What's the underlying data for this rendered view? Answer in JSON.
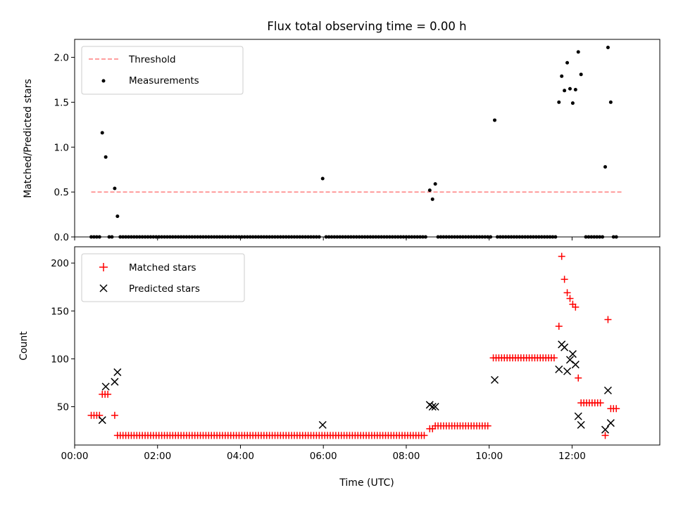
{
  "chart_data": [
    {
      "type": "scatter",
      "title": "Flux total observing time = 0.00 h",
      "ylabel": "Matched/Predicted stars",
      "xlabel": "",
      "xlim": [
        "00:00",
        "14:07"
      ],
      "ylim": [
        0,
        2.2
      ],
      "xticks": [
        "00:00",
        "02:00",
        "04:00",
        "06:00",
        "08:00",
        "10:00",
        "12:00"
      ],
      "yticks": [
        "0.0",
        "0.5",
        "1.0",
        "1.5",
        "2.0"
      ],
      "legend_position": "top-left",
      "legend": [
        {
          "label": "Threshold",
          "style": "dashed-line",
          "color": "#ff7f7f"
        },
        {
          "label": "Measurements",
          "style": "dot",
          "color": "#000000"
        }
      ],
      "threshold": {
        "value": 0.5,
        "x_start": "00:24",
        "x_end": "13:12"
      },
      "series": [
        {
          "name": "Measurements",
          "color": "#000000",
          "points": [
            [
              "00:24",
              0
            ],
            [
              "00:28",
              0
            ],
            [
              "00:32",
              0
            ],
            [
              "00:36",
              0
            ],
            [
              "00:40",
              1.16
            ],
            [
              "00:45",
              0.89
            ],
            [
              "00:50",
              0
            ],
            [
              "00:54",
              0
            ],
            [
              "00:58",
              0.54
            ],
            [
              "01:02",
              0.23
            ],
            [
              "01:06",
              0
            ],
            [
              "01:10",
              0
            ],
            [
              "01:14",
              0
            ],
            [
              "01:18",
              0
            ],
            [
              "01:22",
              0
            ],
            [
              "01:26",
              0
            ],
            [
              "01:30",
              0
            ],
            [
              "01:34",
              0
            ],
            [
              "01:38",
              0
            ],
            [
              "01:42",
              0
            ],
            [
              "01:46",
              0
            ],
            [
              "01:50",
              0
            ],
            [
              "01:54",
              0
            ],
            [
              "01:58",
              0
            ],
            [
              "02:02",
              0
            ],
            [
              "02:06",
              0
            ],
            [
              "02:10",
              0
            ],
            [
              "02:14",
              0
            ],
            [
              "02:18",
              0
            ],
            [
              "02:22",
              0
            ],
            [
              "02:26",
              0
            ],
            [
              "02:30",
              0
            ],
            [
              "02:34",
              0
            ],
            [
              "02:38",
              0
            ],
            [
              "02:42",
              0
            ],
            [
              "02:46",
              0
            ],
            [
              "02:50",
              0
            ],
            [
              "02:54",
              0
            ],
            [
              "02:58",
              0
            ],
            [
              "03:02",
              0
            ],
            [
              "03:06",
              0
            ],
            [
              "03:10",
              0
            ],
            [
              "03:14",
              0
            ],
            [
              "03:18",
              0
            ],
            [
              "03:22",
              0
            ],
            [
              "03:26",
              0
            ],
            [
              "03:30",
              0
            ],
            [
              "03:34",
              0
            ],
            [
              "03:38",
              0
            ],
            [
              "03:42",
              0
            ],
            [
              "03:46",
              0
            ],
            [
              "03:50",
              0
            ],
            [
              "03:54",
              0
            ],
            [
              "03:58",
              0
            ],
            [
              "04:02",
              0
            ],
            [
              "04:06",
              0
            ],
            [
              "04:10",
              0
            ],
            [
              "04:14",
              0
            ],
            [
              "04:18",
              0
            ],
            [
              "04:22",
              0
            ],
            [
              "04:26",
              0
            ],
            [
              "04:30",
              0
            ],
            [
              "04:34",
              0
            ],
            [
              "04:38",
              0
            ],
            [
              "04:42",
              0
            ],
            [
              "04:46",
              0
            ],
            [
              "04:50",
              0
            ],
            [
              "04:54",
              0
            ],
            [
              "04:58",
              0
            ],
            [
              "05:02",
              0
            ],
            [
              "05:06",
              0
            ],
            [
              "05:10",
              0
            ],
            [
              "05:14",
              0
            ],
            [
              "05:18",
              0
            ],
            [
              "05:22",
              0
            ],
            [
              "05:26",
              0
            ],
            [
              "05:30",
              0
            ],
            [
              "05:34",
              0
            ],
            [
              "05:38",
              0
            ],
            [
              "05:42",
              0
            ],
            [
              "05:46",
              0
            ],
            [
              "05:50",
              0
            ],
            [
              "05:54",
              0
            ],
            [
              "05:59",
              0.65
            ],
            [
              "06:04",
              0
            ],
            [
              "06:08",
              0
            ],
            [
              "06:12",
              0
            ],
            [
              "06:16",
              0
            ],
            [
              "06:20",
              0
            ],
            [
              "06:24",
              0
            ],
            [
              "06:28",
              0
            ],
            [
              "06:32",
              0
            ],
            [
              "06:36",
              0
            ],
            [
              "06:40",
              0
            ],
            [
              "06:44",
              0
            ],
            [
              "06:48",
              0
            ],
            [
              "06:52",
              0
            ],
            [
              "06:56",
              0
            ],
            [
              "07:00",
              0
            ],
            [
              "07:04",
              0
            ],
            [
              "07:08",
              0
            ],
            [
              "07:12",
              0
            ],
            [
              "07:16",
              0
            ],
            [
              "07:20",
              0
            ],
            [
              "07:24",
              0
            ],
            [
              "07:28",
              0
            ],
            [
              "07:32",
              0
            ],
            [
              "07:36",
              0
            ],
            [
              "07:40",
              0
            ],
            [
              "07:44",
              0
            ],
            [
              "07:48",
              0
            ],
            [
              "07:52",
              0
            ],
            [
              "07:56",
              0
            ],
            [
              "08:00",
              0
            ],
            [
              "08:04",
              0
            ],
            [
              "08:08",
              0
            ],
            [
              "08:12",
              0
            ],
            [
              "08:16",
              0
            ],
            [
              "08:20",
              0
            ],
            [
              "08:24",
              0
            ],
            [
              "08:28",
              0
            ],
            [
              "08:34",
              0.52
            ],
            [
              "08:38",
              0.42
            ],
            [
              "08:42",
              0.59
            ],
            [
              "08:46",
              0
            ],
            [
              "08:50",
              0
            ],
            [
              "08:54",
              0
            ],
            [
              "08:58",
              0
            ],
            [
              "09:02",
              0
            ],
            [
              "09:06",
              0
            ],
            [
              "09:10",
              0
            ],
            [
              "09:14",
              0
            ],
            [
              "09:18",
              0
            ],
            [
              "09:22",
              0
            ],
            [
              "09:26",
              0
            ],
            [
              "09:30",
              0
            ],
            [
              "09:34",
              0
            ],
            [
              "09:38",
              0
            ],
            [
              "09:42",
              0
            ],
            [
              "09:46",
              0
            ],
            [
              "09:50",
              0
            ],
            [
              "09:54",
              0
            ],
            [
              "09:58",
              0
            ],
            [
              "10:02",
              0
            ],
            [
              "10:08",
              1.3
            ],
            [
              "10:12",
              0
            ],
            [
              "10:16",
              0
            ],
            [
              "10:20",
              0
            ],
            [
              "10:24",
              0
            ],
            [
              "10:28",
              0
            ],
            [
              "10:32",
              0
            ],
            [
              "10:36",
              0
            ],
            [
              "10:40",
              0
            ],
            [
              "10:44",
              0
            ],
            [
              "10:48",
              0
            ],
            [
              "10:52",
              0
            ],
            [
              "10:56",
              0
            ],
            [
              "11:00",
              0
            ],
            [
              "11:04",
              0
            ],
            [
              "11:08",
              0
            ],
            [
              "11:12",
              0
            ],
            [
              "11:16",
              0
            ],
            [
              "11:20",
              0
            ],
            [
              "11:24",
              0
            ],
            [
              "11:28",
              0
            ],
            [
              "11:32",
              0
            ],
            [
              "11:36",
              0
            ],
            [
              "11:41",
              1.5
            ],
            [
              "11:45",
              1.79
            ],
            [
              "11:49",
              1.63
            ],
            [
              "11:53",
              1.94
            ],
            [
              "11:57",
              1.65
            ],
            [
              "12:01",
              1.49
            ],
            [
              "12:05",
              1.64
            ],
            [
              "12:09",
              2.06
            ],
            [
              "12:13",
              1.81
            ],
            [
              "12:20",
              0
            ],
            [
              "12:24",
              0
            ],
            [
              "12:28",
              0
            ],
            [
              "12:32",
              0
            ],
            [
              "12:36",
              0
            ],
            [
              "12:40",
              0
            ],
            [
              "12:44",
              0
            ],
            [
              "12:48",
              0.78
            ],
            [
              "12:52",
              2.11
            ],
            [
              "12:56",
              1.5
            ],
            [
              "13:00",
              0
            ],
            [
              "13:04",
              0
            ]
          ]
        }
      ]
    },
    {
      "type": "scatter",
      "title": "",
      "ylabel": "Count",
      "xlabel": "Time (UTC)",
      "xlim": [
        "00:00",
        "14:07"
      ],
      "ylim": [
        10,
        217
      ],
      "xticks": [
        "00:00",
        "02:00",
        "04:00",
        "06:00",
        "08:00",
        "10:00",
        "12:00"
      ],
      "yticks": [
        "50",
        "100",
        "150",
        "200"
      ],
      "legend_position": "top-left",
      "legend": [
        {
          "label": "Matched stars",
          "marker": "plus",
          "color": "#ff0000"
        },
        {
          "label": "Predicted stars",
          "marker": "x",
          "color": "#000000"
        }
      ],
      "series": [
        {
          "name": "Matched stars",
          "marker": "plus",
          "color": "#ff0000",
          "segments": [
            {
              "start": "00:24",
              "end": "00:36",
              "step_min": 4,
              "value": 41
            },
            {
              "start": "00:40",
              "end": "00:48",
              "step_min": 4,
              "value": 63
            },
            {
              "start": "00:58",
              "end": "00:58",
              "step_min": 4,
              "value": 41
            },
            {
              "start": "01:02",
              "end": "08:28",
              "step_min": 4,
              "value": 20
            },
            {
              "start": "08:34",
              "end": "08:38",
              "step_min": 4,
              "value": 27
            },
            {
              "start": "08:42",
              "end": "10:00",
              "step_min": 4,
              "value": 30
            },
            {
              "start": "10:06",
              "end": "11:36",
              "step_min": 4,
              "value": 101
            }
          ],
          "points": [
            [
              "11:41",
              134
            ],
            [
              "11:45",
              207
            ],
            [
              "11:49",
              183
            ],
            [
              "11:53",
              169
            ],
            [
              "11:57",
              163
            ],
            [
              "12:01",
              157
            ],
            [
              "12:05",
              154
            ],
            [
              "12:09",
              80
            ],
            [
              "12:13",
              54
            ],
            [
              "12:17",
              54
            ],
            [
              "12:21",
              54
            ],
            [
              "12:25",
              54
            ],
            [
              "12:29",
              54
            ],
            [
              "12:33",
              54
            ],
            [
              "12:37",
              54
            ],
            [
              "12:41",
              54
            ],
            [
              "12:48",
              20
            ],
            [
              "12:52",
              141
            ],
            [
              "12:56",
              48
            ],
            [
              "13:00",
              48
            ],
            [
              "13:04",
              48
            ]
          ]
        },
        {
          "name": "Predicted stars",
          "marker": "x",
          "color": "#000000",
          "points": [
            [
              "00:40",
              36
            ],
            [
              "00:45",
              71
            ],
            [
              "00:58",
              76
            ],
            [
              "01:02",
              86
            ],
            [
              "05:59",
              31
            ],
            [
              "08:34",
              52
            ],
            [
              "08:38",
              50
            ],
            [
              "08:42",
              50
            ],
            [
              "10:08",
              78
            ],
            [
              "11:41",
              89
            ],
            [
              "11:45",
              115
            ],
            [
              "11:49",
              112
            ],
            [
              "11:53",
              87
            ],
            [
              "11:57",
              99
            ],
            [
              "12:01",
              105
            ],
            [
              "12:05",
              94
            ],
            [
              "12:09",
              40
            ],
            [
              "12:13",
              31
            ],
            [
              "12:48",
              26
            ],
            [
              "12:52",
              67
            ],
            [
              "12:56",
              33
            ]
          ]
        }
      ]
    }
  ]
}
